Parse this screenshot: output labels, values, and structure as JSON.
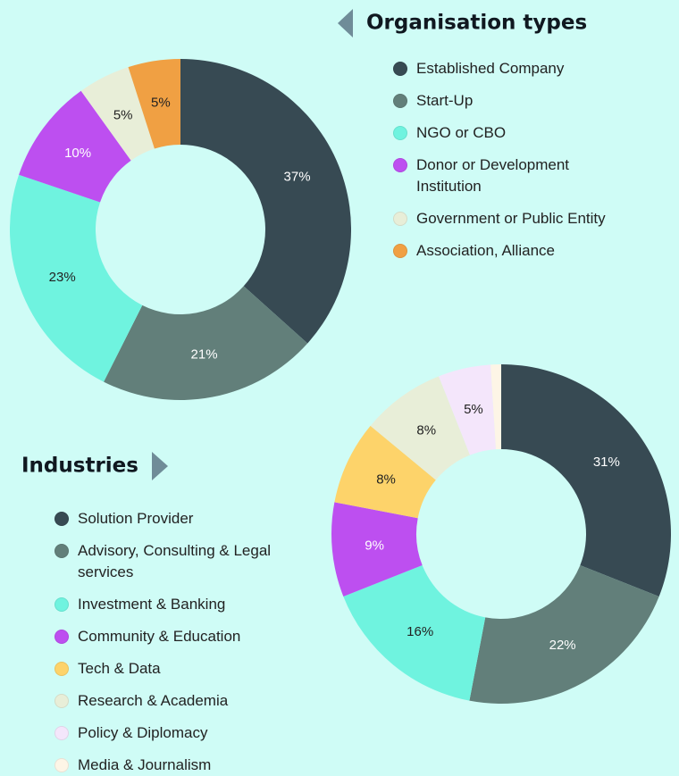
{
  "chart_data": [
    {
      "type": "pie",
      "title": "Organisation types",
      "categories": [
        "Established Company",
        "Start-Up",
        "NGO or CBO",
        "Donor or Development Institution",
        "Government or Public Entity",
        "Association, Alliance"
      ],
      "values": [
        37,
        21,
        23,
        10,
        5,
        5
      ],
      "value_labels": [
        "37%",
        "21%",
        "23%",
        "10%",
        "5%",
        "5%"
      ],
      "colors": [
        "#374a53",
        "#627f7a",
        "#6ff3df",
        "#bd4ff0",
        "#e8eed8",
        "#f0a043"
      ]
    },
    {
      "type": "pie",
      "title": "Industries",
      "categories": [
        "Solution Provider",
        "Advisory, Consulting & Legal services",
        "Investment & Banking",
        "Community & Education",
        "Tech & Data",
        "Research & Academia",
        "Policy & Diplomacy",
        "Media & Journalism"
      ],
      "values": [
        31,
        22,
        16,
        9,
        8,
        8,
        5,
        1
      ],
      "value_labels": [
        "31%",
        "22%",
        "16%",
        "9%",
        "8%",
        "8%",
        "5%",
        null
      ],
      "colors": [
        "#374a53",
        "#627f7a",
        "#6ff3df",
        "#bd4ff0",
        "#fdd36a",
        "#e8eed8",
        "#f4e6fb",
        "#fdf5e6"
      ]
    }
  ]
}
